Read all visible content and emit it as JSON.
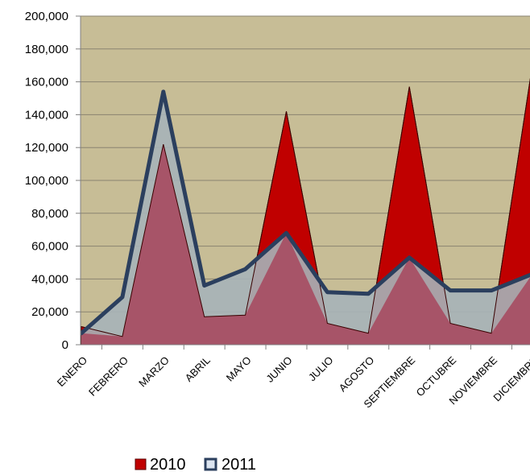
{
  "chart_data": {
    "type": "area",
    "categories": [
      "ENERO",
      "FEBRERO",
      "MARZO",
      "ABRIL",
      "MAYO",
      "JUNIO",
      "JULIO",
      "AGOSTO",
      "SEPTIEMBRE",
      "OCTUBRE",
      "NOVIEMBRE",
      "DICIEMBRE"
    ],
    "series": [
      {
        "name": "2010",
        "values": [
          11000,
          5000,
          122000,
          17000,
          18000,
          142000,
          13000,
          7000,
          157000,
          13000,
          7000,
          170000
        ],
        "color": "#c00000"
      },
      {
        "name": "2011",
        "values": [
          7000,
          29000,
          154000,
          36000,
          46000,
          68000,
          32000,
          31000,
          53000,
          33000,
          33000,
          43000
        ],
        "color": "#2b3f5e",
        "fill": "#a6b3b8"
      }
    ],
    "ylim": [
      0,
      200000
    ],
    "yticks": [
      "0",
      "20,000",
      "40,000",
      "60,000",
      "80,000",
      "100,000",
      "120,000",
      "140,000",
      "160,000",
      "180,000",
      "200,000"
    ],
    "grid": true,
    "plot_background": "#c7bd96",
    "overlap_color": "#a75468",
    "legend_position": "bottom"
  }
}
